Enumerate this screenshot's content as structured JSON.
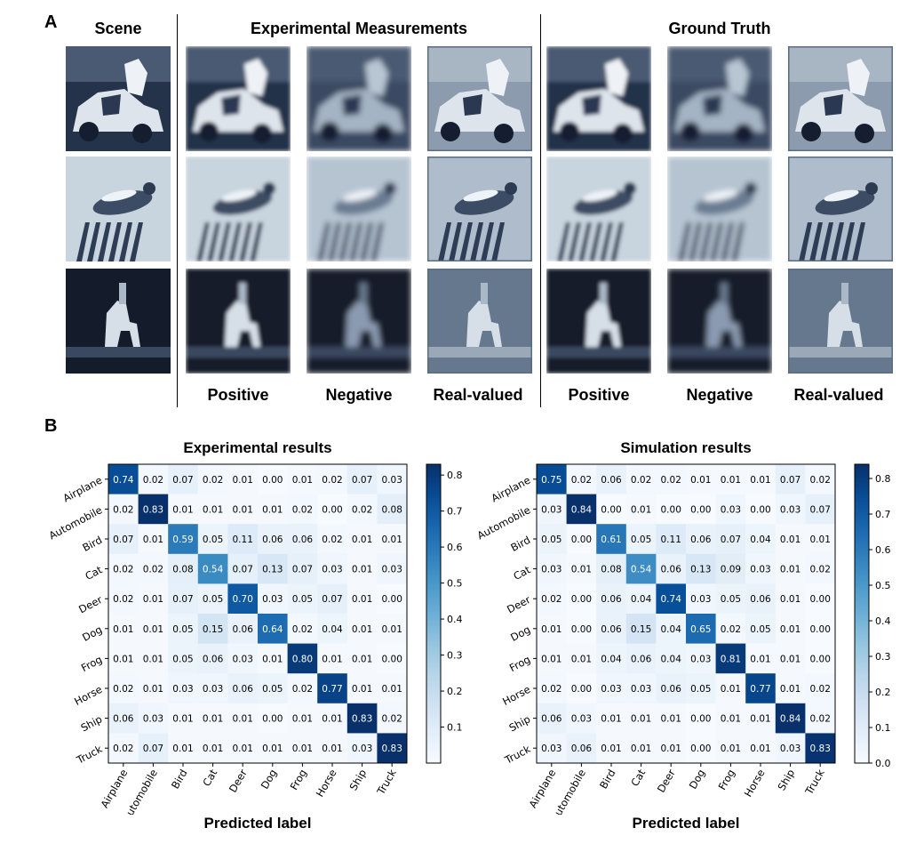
{
  "panel_a": {
    "letter": "A",
    "col_scene": "Scene",
    "col_experimental": "Experimental Measurements",
    "col_ground_truth": "Ground Truth",
    "sub_labels": [
      "Positive",
      "Negative",
      "Real-valued",
      "Positive",
      "Negative",
      "Real-valued"
    ],
    "rows": [
      "automobile",
      "bird",
      "horse"
    ]
  },
  "panel_b": {
    "letter": "B",
    "xlabel": "Predicted label",
    "colormap": "Blues",
    "chart_data": [
      {
        "type": "heatmap",
        "title": "Experimental results",
        "xlabel": "Predicted label",
        "categories": [
          "Airplane",
          "Automobile",
          "Bird",
          "Cat",
          "Deer",
          "Dog",
          "Frog",
          "Horse",
          "Ship",
          "Truck"
        ],
        "values": [
          [
            0.74,
            0.02,
            0.07,
            0.02,
            0.01,
            0.0,
            0.01,
            0.02,
            0.07,
            0.03
          ],
          [
            0.02,
            0.83,
            0.01,
            0.01,
            0.01,
            0.01,
            0.02,
            0.0,
            0.02,
            0.08
          ],
          [
            0.07,
            0.01,
            0.59,
            0.05,
            0.11,
            0.06,
            0.06,
            0.02,
            0.01,
            0.01
          ],
          [
            0.02,
            0.02,
            0.08,
            0.54,
            0.07,
            0.13,
            0.07,
            0.03,
            0.01,
            0.03
          ],
          [
            0.02,
            0.01,
            0.07,
            0.05,
            0.7,
            0.03,
            0.05,
            0.07,
            0.01,
            0.0
          ],
          [
            0.01,
            0.01,
            0.05,
            0.15,
            0.06,
            0.64,
            0.02,
            0.04,
            0.01,
            0.01
          ],
          [
            0.01,
            0.01,
            0.05,
            0.06,
            0.03,
            0.01,
            0.8,
            0.01,
            0.01,
            0.0
          ],
          [
            0.02,
            0.01,
            0.03,
            0.03,
            0.06,
            0.05,
            0.02,
            0.77,
            0.01,
            0.01
          ],
          [
            0.06,
            0.03,
            0.01,
            0.01,
            0.01,
            0.0,
            0.01,
            0.01,
            0.83,
            0.02
          ],
          [
            0.02,
            0.07,
            0.01,
            0.01,
            0.01,
            0.01,
            0.01,
            0.01,
            0.03,
            0.83
          ]
        ],
        "colorbar_range": [
          0.0,
          0.83
        ],
        "colorbar_ticks": [
          "0.1",
          "0.2",
          "0.3",
          "0.4",
          "0.5",
          "0.6",
          "0.7",
          "0.8"
        ]
      },
      {
        "type": "heatmap",
        "title": "Simulation results",
        "xlabel": "Predicted label",
        "categories": [
          "Airplane",
          "Automobile",
          "Bird",
          "Cat",
          "Deer",
          "Dog",
          "Frog",
          "Horse",
          "Ship",
          "Truck"
        ],
        "values": [
          [
            0.75,
            0.02,
            0.06,
            0.02,
            0.02,
            0.01,
            0.01,
            0.01,
            0.07,
            0.02
          ],
          [
            0.03,
            0.84,
            0.0,
            0.01,
            0.0,
            0.0,
            0.03,
            0.0,
            0.03,
            0.07
          ],
          [
            0.05,
            0.0,
            0.61,
            0.05,
            0.11,
            0.06,
            0.07,
            0.04,
            0.01,
            0.01
          ],
          [
            0.03,
            0.01,
            0.08,
            0.54,
            0.06,
            0.13,
            0.09,
            0.03,
            0.01,
            0.02
          ],
          [
            0.02,
            0.0,
            0.06,
            0.04,
            0.74,
            0.03,
            0.05,
            0.06,
            0.01,
            0.0
          ],
          [
            0.01,
            0.0,
            0.06,
            0.15,
            0.04,
            0.65,
            0.02,
            0.05,
            0.01,
            0.0
          ],
          [
            0.01,
            0.01,
            0.04,
            0.06,
            0.04,
            0.03,
            0.81,
            0.01,
            0.01,
            0.0
          ],
          [
            0.02,
            0.0,
            0.03,
            0.03,
            0.06,
            0.05,
            0.01,
            0.77,
            0.01,
            0.02
          ],
          [
            0.06,
            0.03,
            0.01,
            0.01,
            0.01,
            0.0,
            0.01,
            0.01,
            0.84,
            0.02
          ],
          [
            0.03,
            0.06,
            0.01,
            0.01,
            0.01,
            0.0,
            0.01,
            0.01,
            0.03,
            0.83
          ]
        ],
        "colorbar_range": [
          0.0,
          0.84
        ],
        "colorbar_ticks": [
          "0.0",
          "0.1",
          "0.2",
          "0.3",
          "0.4",
          "0.5",
          "0.6",
          "0.7",
          "0.8"
        ]
      }
    ]
  }
}
